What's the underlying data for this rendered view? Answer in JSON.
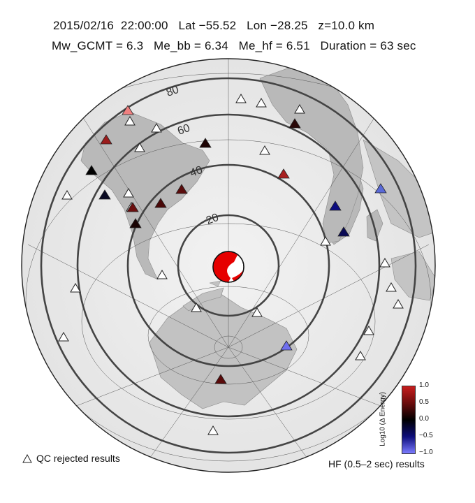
{
  "header": {
    "line1": "2015/02/16  22:00:00   Lat −55.52   Lon −28.25   z=10.0 km",
    "line2": "Mw_GCMT = 6.3   Me_bb = 6.34   Me_hf = 6.51   Duration = 63 sec"
  },
  "map": {
    "distance_rings": [
      {
        "deg": 20,
        "label": "20"
      },
      {
        "deg": 40,
        "label": "40"
      },
      {
        "deg": 60,
        "label": "60"
      },
      {
        "deg": 80,
        "label": "80"
      }
    ]
  },
  "legend": {
    "qc_rejected": "QC rejected results",
    "hf_results": "HF (0.5–2 sec) results"
  },
  "colorbar": {
    "title": "Log10 (Δ Energy)",
    "ticks": [
      "1.0",
      "0.5",
      "0.0",
      "−0.5",
      "−1.0"
    ],
    "colors": {
      "high": "#c81e1e",
      "mid": "#000000",
      "low": "#7b7bff"
    }
  }
}
